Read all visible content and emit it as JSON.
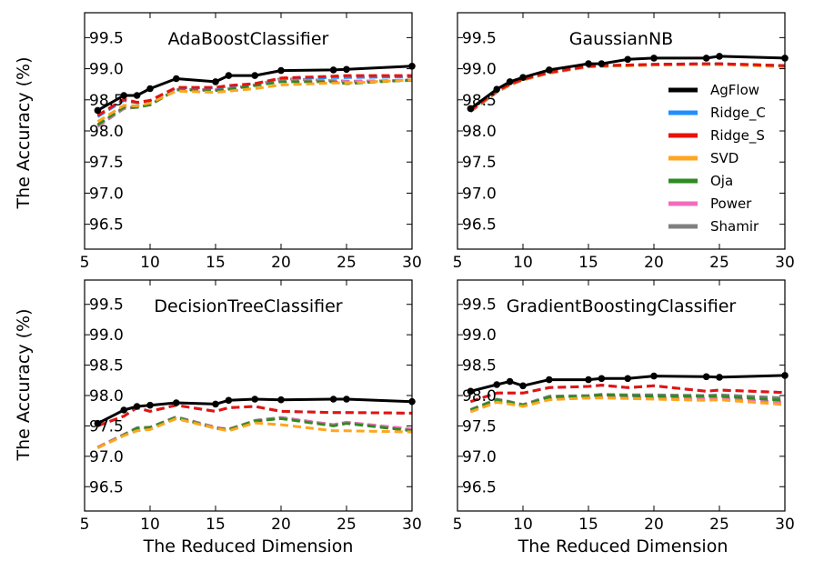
{
  "figure": {
    "xlabel": "The Reduced Dimension",
    "ylabel": "The Accuracy (%)",
    "legend_position": "inside-right of top-right panel"
  },
  "series_styles": [
    {
      "name": "AgFlow",
      "color": "#000000",
      "dash": "solid",
      "markers": true
    },
    {
      "name": "Ridge_C",
      "color": "#1f8fff",
      "dash": "dashed",
      "markers": false
    },
    {
      "name": "Ridge_S",
      "color": "#e8120c",
      "dash": "dashed",
      "markers": false
    },
    {
      "name": "SVD",
      "color": "#ffa51f",
      "dash": "dashed",
      "markers": false
    },
    {
      "name": "Oja",
      "color": "#2e8b22",
      "dash": "dashed",
      "markers": false
    },
    {
      "name": "Power",
      "color": "#f26bbd",
      "dash": "dashed",
      "markers": false
    },
    {
      "name": "Shamir",
      "color": "#808080",
      "dash": "dashed",
      "markers": false
    }
  ],
  "chart_data": [
    {
      "type": "line",
      "title": "AdaBoostClassifier",
      "xlim": [
        5,
        30
      ],
      "ylim": [
        96.1,
        99.9
      ],
      "xticks": [
        "5",
        "10",
        "15",
        "20",
        "25",
        "30"
      ],
      "yticks": [
        "96.5",
        "97.0",
        "97.5",
        "98.0",
        "98.5",
        "99.0",
        "99.5"
      ],
      "x": [
        6,
        8,
        9,
        10,
        12,
        15,
        16,
        18,
        20,
        24,
        25,
        30
      ],
      "series": [
        {
          "name": "AgFlow",
          "values": [
            98.33,
            98.57,
            98.57,
            98.68,
            98.84,
            98.79,
            98.89,
            98.89,
            98.97,
            98.98,
            98.99,
            99.04
          ]
        },
        {
          "name": "Ridge_C",
          "values": [
            98.23,
            98.49,
            98.45,
            98.49,
            98.69,
            98.69,
            98.72,
            98.76,
            98.84,
            98.86,
            98.86,
            98.87
          ]
        },
        {
          "name": "Ridge_S",
          "values": [
            98.25,
            98.51,
            98.46,
            98.49,
            98.7,
            98.7,
            98.73,
            98.76,
            98.85,
            98.88,
            98.89,
            98.89
          ]
        },
        {
          "name": "SVD",
          "values": [
            98.15,
            98.41,
            98.4,
            98.45,
            98.64,
            98.62,
            98.64,
            98.68,
            98.74,
            98.77,
            98.77,
            98.82
          ]
        },
        {
          "name": "Oja",
          "values": [
            98.1,
            98.38,
            98.38,
            98.42,
            98.66,
            98.65,
            98.67,
            98.73,
            98.79,
            98.79,
            98.76,
            98.82
          ]
        },
        {
          "name": "Power",
          "values": [
            98.08,
            98.37,
            98.38,
            98.42,
            98.66,
            98.67,
            98.68,
            98.74,
            98.82,
            98.81,
            98.79,
            98.82
          ]
        },
        {
          "name": "Shamir",
          "values": [
            98.07,
            98.36,
            98.38,
            98.42,
            98.67,
            98.66,
            98.68,
            98.74,
            98.84,
            98.81,
            98.8,
            98.81
          ]
        }
      ]
    },
    {
      "type": "line",
      "title": "GaussianNB",
      "xlim": [
        5,
        30
      ],
      "ylim": [
        96.1,
        99.9
      ],
      "xticks": [
        "5",
        "10",
        "15",
        "20",
        "25",
        "30"
      ],
      "yticks": [
        "96.5",
        "97.0",
        "97.5",
        "98.0",
        "98.5",
        "99.0",
        "99.5"
      ],
      "x": [
        6,
        8,
        9,
        10,
        12,
        15,
        16,
        18,
        20,
        24,
        25,
        30
      ],
      "series": [
        {
          "name": "AgFlow",
          "values": [
            98.36,
            98.67,
            98.79,
            98.86,
            98.98,
            99.08,
            99.08,
            99.15,
            99.17,
            99.17,
            99.2,
            99.17
          ]
        },
        {
          "name": "Ridge_C",
          "values": [
            98.33,
            98.64,
            98.75,
            98.83,
            98.94,
            99.04,
            99.05,
            99.06,
            99.07,
            99.08,
            99.08,
            99.05
          ]
        },
        {
          "name": "Ridge_S",
          "values": [
            98.33,
            98.64,
            98.75,
            98.83,
            98.94,
            99.04,
            99.05,
            99.06,
            99.07,
            99.08,
            99.08,
            99.05
          ]
        },
        {
          "name": "SVD",
          "values": [
            98.32,
            98.63,
            98.74,
            98.82,
            98.93,
            99.03,
            99.04,
            99.05,
            99.06,
            99.07,
            99.07,
            99.03
          ]
        },
        {
          "name": "Oja",
          "values": [
            98.32,
            98.63,
            98.74,
            98.82,
            98.93,
            99.03,
            99.04,
            99.05,
            99.06,
            99.07,
            99.07,
            99.04
          ]
        },
        {
          "name": "Power",
          "values": [
            98.32,
            98.63,
            98.74,
            98.82,
            98.93,
            99.04,
            99.04,
            99.05,
            99.06,
            99.07,
            99.07,
            99.04
          ]
        },
        {
          "name": "Shamir",
          "values": [
            98.31,
            98.62,
            98.74,
            98.82,
            98.93,
            99.04,
            99.04,
            99.05,
            99.07,
            99.07,
            99.08,
            99.05
          ]
        }
      ]
    },
    {
      "type": "line",
      "title": "DecisionTreeClassifier",
      "xlim": [
        5,
        30
      ],
      "ylim": [
        96.1,
        99.9
      ],
      "xticks": [
        "5",
        "10",
        "15",
        "20",
        "25",
        "30"
      ],
      "yticks": [
        "96.5",
        "97.0",
        "97.5",
        "98.0",
        "98.5",
        "99.0",
        "99.5"
      ],
      "x": [
        6,
        8,
        9,
        10,
        12,
        15,
        16,
        18,
        20,
        24,
        25,
        30
      ],
      "series": [
        {
          "name": "AgFlow",
          "values": [
            97.54,
            97.76,
            97.82,
            97.84,
            97.88,
            97.86,
            97.92,
            97.94,
            97.93,
            97.94,
            97.94,
            97.9
          ]
        },
        {
          "name": "Ridge_C",
          "values": [
            97.5,
            97.66,
            97.8,
            97.74,
            97.84,
            97.74,
            97.8,
            97.82,
            97.74,
            97.72,
            97.72,
            97.71
          ]
        },
        {
          "name": "Ridge_S",
          "values": [
            97.5,
            97.66,
            97.8,
            97.74,
            97.84,
            97.74,
            97.8,
            97.82,
            97.74,
            97.72,
            97.72,
            97.71
          ]
        },
        {
          "name": "SVD",
          "values": [
            97.14,
            97.34,
            97.42,
            97.44,
            97.62,
            97.46,
            97.42,
            97.55,
            97.52,
            97.42,
            97.42,
            97.4
          ]
        },
        {
          "name": "Oja",
          "values": [
            97.14,
            97.35,
            97.46,
            97.47,
            97.64,
            97.46,
            97.44,
            97.58,
            97.62,
            97.5,
            97.54,
            97.42
          ]
        },
        {
          "name": "Power",
          "values": [
            97.15,
            97.36,
            97.46,
            97.47,
            97.64,
            97.47,
            97.45,
            97.58,
            97.63,
            97.52,
            97.56,
            97.45
          ]
        },
        {
          "name": "Shamir",
          "values": [
            97.15,
            97.36,
            97.47,
            97.48,
            97.65,
            97.48,
            97.44,
            97.59,
            97.64,
            97.52,
            97.56,
            97.43
          ]
        }
      ]
    },
    {
      "type": "line",
      "title": "GradientBoostingClassifier",
      "xlim": [
        5,
        30
      ],
      "ylim": [
        96.1,
        99.9
      ],
      "xticks": [
        "5",
        "10",
        "15",
        "20",
        "25",
        "30"
      ],
      "yticks": [
        "96.5",
        "97.0",
        "97.5",
        "98.0",
        "98.5",
        "99.0",
        "99.5"
      ],
      "x": [
        6,
        8,
        9,
        10,
        12,
        15,
        16,
        18,
        20,
        24,
        25,
        30
      ],
      "series": [
        {
          "name": "AgFlow",
          "values": [
            98.07,
            98.18,
            98.23,
            98.16,
            98.26,
            98.26,
            98.28,
            98.28,
            98.32,
            98.31,
            98.3,
            98.33
          ]
        },
        {
          "name": "Ridge_C",
          "values": [
            97.9,
            98.04,
            98.04,
            98.04,
            98.13,
            98.15,
            98.17,
            98.13,
            98.16,
            98.07,
            98.09,
            98.05
          ]
        },
        {
          "name": "Ridge_S",
          "values": [
            97.9,
            98.04,
            98.04,
            98.04,
            98.13,
            98.15,
            98.17,
            98.13,
            98.16,
            98.07,
            98.09,
            98.05
          ]
        },
        {
          "name": "SVD",
          "values": [
            97.73,
            97.89,
            97.86,
            97.82,
            97.93,
            97.96,
            97.96,
            97.95,
            97.94,
            97.92,
            97.93,
            97.85
          ]
        },
        {
          "name": "Oja",
          "values": [
            97.76,
            97.93,
            97.89,
            97.84,
            97.97,
            97.99,
            98.01,
            98.0,
            97.99,
            97.99,
            97.99,
            97.92
          ]
        },
        {
          "name": "Power",
          "values": [
            97.74,
            97.9,
            97.87,
            97.83,
            97.94,
            97.96,
            97.98,
            97.97,
            97.96,
            97.95,
            97.95,
            97.89
          ]
        },
        {
          "name": "Shamir",
          "values": [
            97.77,
            97.94,
            97.9,
            97.85,
            97.99,
            98.0,
            98.02,
            98.01,
            98.01,
            98.0,
            98.01,
            97.96
          ]
        }
      ]
    }
  ]
}
